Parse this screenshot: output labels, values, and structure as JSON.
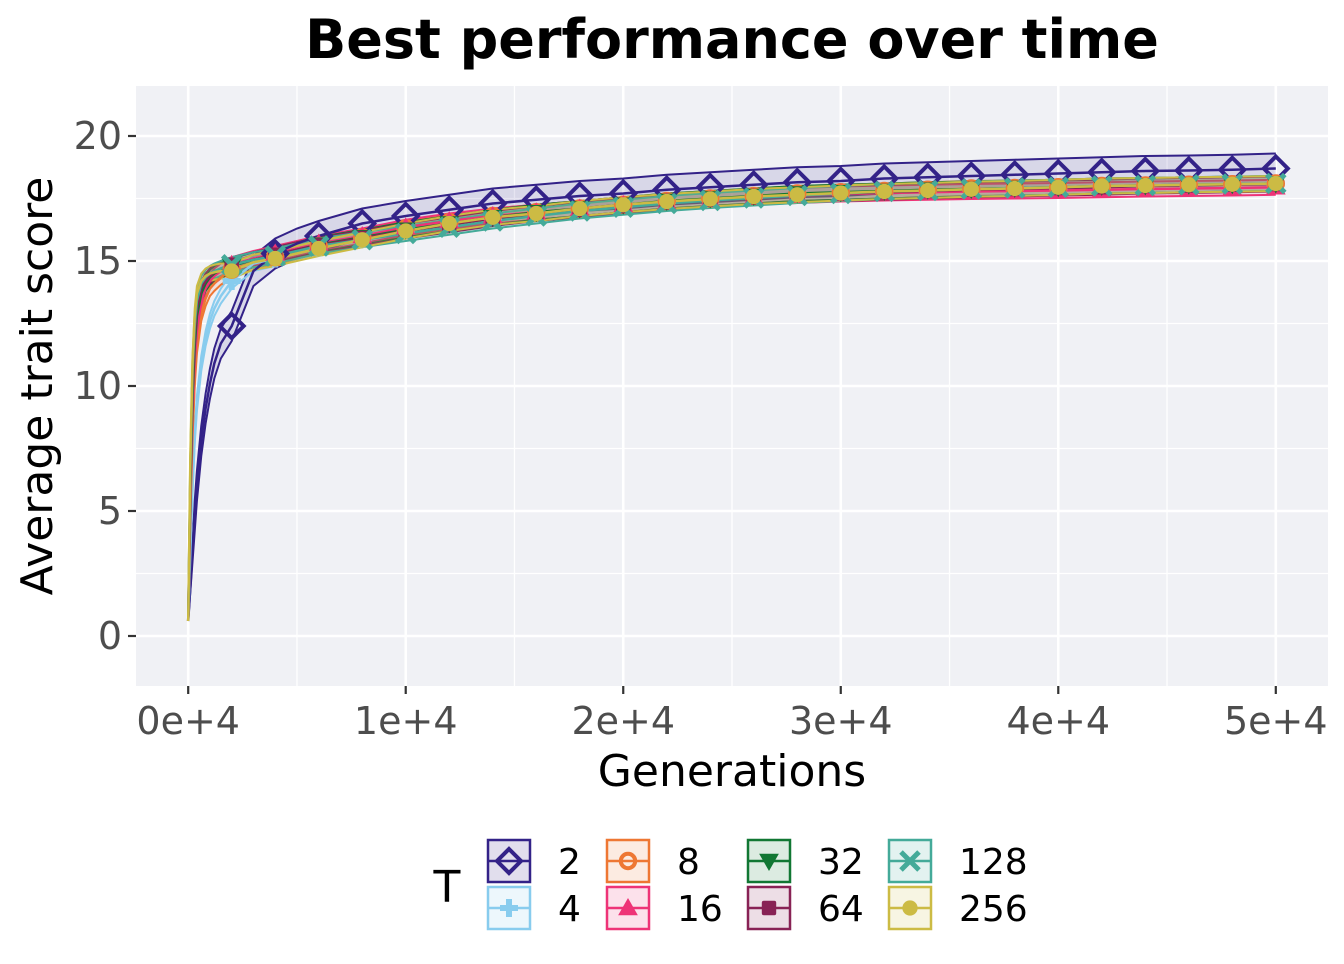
{
  "chart_data": {
    "type": "line",
    "title": "Best performance over time",
    "xlabel": "Generations",
    "ylabel": "Average trait score",
    "xlim": [
      -2400,
      52400
    ],
    "ylim": [
      -2,
      22
    ],
    "x_ticks": [
      0,
      10000,
      20000,
      30000,
      40000,
      50000
    ],
    "x_tick_labels": [
      "0e+4",
      "1e+4",
      "2e+4",
      "3e+4",
      "4e+4",
      "5e+4"
    ],
    "y_ticks": [
      0,
      5,
      10,
      15,
      20
    ],
    "y_tick_labels": [
      "0",
      "5",
      "10",
      "15",
      "20"
    ],
    "grid": true,
    "legend_position": "bottom",
    "legend_title": "T",
    "x": [
      0,
      100,
      200,
      300,
      400,
      600,
      800,
      1000,
      1200,
      1500,
      2000,
      3000,
      4000,
      5000,
      6000,
      8000,
      10000,
      12000,
      14000,
      16000,
      18000,
      20000,
      22000,
      24000,
      26000,
      28000,
      30000,
      32000,
      34000,
      36000,
      38000,
      40000,
      42000,
      44000,
      46000,
      48000,
      50000
    ],
    "marker_x": [
      2000,
      4000,
      6000,
      8000,
      10000,
      12000,
      14000,
      16000,
      18000,
      20000,
      22000,
      24000,
      26000,
      28000,
      30000,
      32000,
      34000,
      36000,
      38000,
      40000,
      42000,
      44000,
      46000,
      48000,
      50000
    ],
    "series": [
      {
        "name": "2",
        "color": "#332288",
        "marker": "diamond",
        "band": 0.6,
        "values": [
          0.6,
          2.0,
          3.4,
          4.8,
          6.0,
          7.8,
          9.1,
          10.1,
          10.9,
          11.7,
          12.4,
          14.6,
          15.3,
          15.7,
          16.0,
          16.5,
          16.8,
          17.05,
          17.3,
          17.45,
          17.6,
          17.7,
          17.85,
          17.95,
          18.05,
          18.15,
          18.2,
          18.3,
          18.35,
          18.4,
          18.45,
          18.5,
          18.55,
          18.6,
          18.62,
          18.65,
          18.7
        ]
      },
      {
        "name": "4",
        "color": "#88CCEE",
        "marker": "plus",
        "band": 0.3,
        "values": [
          0.6,
          3.5,
          6.0,
          8.0,
          9.3,
          10.9,
          11.9,
          12.6,
          13.1,
          13.6,
          14.2,
          14.9,
          15.1,
          15.35,
          15.55,
          15.9,
          16.25,
          16.5,
          16.75,
          16.95,
          17.1,
          17.25,
          17.4,
          17.5,
          17.6,
          17.7,
          17.75,
          17.8,
          17.85,
          17.9,
          17.92,
          17.95,
          18.0,
          18.02,
          18.05,
          18.08,
          18.1
        ]
      },
      {
        "name": "8",
        "color": "#EE7733",
        "marker": "circle-open",
        "band": 0.3,
        "values": [
          0.6,
          5.0,
          8.2,
          10.3,
          11.6,
          12.9,
          13.5,
          13.9,
          14.1,
          14.35,
          14.65,
          14.95,
          15.15,
          15.4,
          15.6,
          15.95,
          16.3,
          16.55,
          16.8,
          16.95,
          17.1,
          17.25,
          17.4,
          17.5,
          17.6,
          17.7,
          17.75,
          17.8,
          17.85,
          17.9,
          17.92,
          17.95,
          18.0,
          18.02,
          18.05,
          18.07,
          18.1
        ]
      },
      {
        "name": "16",
        "color": "#EE3377",
        "marker": "triangle",
        "band": 0.3,
        "values": [
          0.6,
          5.6,
          9.0,
          11.0,
          12.2,
          13.4,
          13.9,
          14.2,
          14.4,
          14.6,
          14.85,
          15.1,
          15.3,
          15.5,
          15.7,
          16.0,
          16.35,
          16.6,
          16.8,
          16.95,
          17.1,
          17.25,
          17.35,
          17.45,
          17.55,
          17.62,
          17.68,
          17.72,
          17.75,
          17.78,
          17.8,
          17.82,
          17.85,
          17.88,
          17.9,
          17.92,
          17.95
        ]
      },
      {
        "name": "32",
        "color": "#117733",
        "marker": "triangle-down",
        "band": 0.3,
        "values": [
          0.6,
          6.0,
          9.6,
          11.6,
          12.8,
          13.7,
          14.1,
          14.35,
          14.5,
          14.65,
          14.8,
          15.05,
          15.25,
          15.45,
          15.65,
          15.95,
          16.25,
          16.5,
          16.75,
          16.95,
          17.1,
          17.25,
          17.4,
          17.5,
          17.6,
          17.7,
          17.75,
          17.8,
          17.85,
          17.88,
          17.92,
          17.95,
          18.0,
          18.02,
          18.05,
          18.07,
          18.1
        ]
      },
      {
        "name": "64",
        "color": "#882255",
        "marker": "square",
        "band": 0.3,
        "values": [
          0.6,
          6.4,
          10.1,
          12.0,
          13.1,
          13.9,
          14.2,
          14.4,
          14.55,
          14.7,
          14.85,
          15.05,
          15.25,
          15.45,
          15.62,
          15.92,
          16.2,
          16.45,
          16.7,
          16.9,
          17.05,
          17.2,
          17.35,
          17.45,
          17.55,
          17.65,
          17.7,
          17.75,
          17.8,
          17.85,
          17.88,
          17.92,
          17.95,
          18.0,
          18.02,
          18.05,
          18.08
        ]
      },
      {
        "name": "128",
        "color": "#44AA99",
        "marker": "x",
        "band": 0.3,
        "values": [
          0.6,
          6.8,
          10.6,
          12.4,
          13.4,
          14.1,
          14.35,
          14.5,
          14.6,
          14.7,
          14.85,
          15.05,
          15.2,
          15.4,
          15.6,
          15.85,
          16.1,
          16.35,
          16.6,
          16.8,
          17.0,
          17.15,
          17.3,
          17.42,
          17.52,
          17.62,
          17.7,
          17.78,
          17.82,
          17.88,
          17.92,
          17.95,
          18.0,
          18.02,
          18.05,
          18.08,
          18.1
        ]
      },
      {
        "name": "256",
        "color": "#CCBB44",
        "marker": "circle",
        "band": 0.3,
        "values": [
          0.6,
          7.2,
          11.0,
          12.8,
          13.7,
          14.2,
          14.4,
          14.5,
          14.55,
          14.6,
          14.6,
          14.95,
          15.1,
          15.3,
          15.5,
          15.85,
          16.2,
          16.5,
          16.75,
          16.9,
          17.1,
          17.25,
          17.38,
          17.48,
          17.58,
          17.65,
          17.72,
          17.78,
          17.82,
          17.87,
          17.9,
          17.95,
          18.0,
          18.02,
          18.05,
          18.07,
          18.1
        ]
      }
    ]
  }
}
